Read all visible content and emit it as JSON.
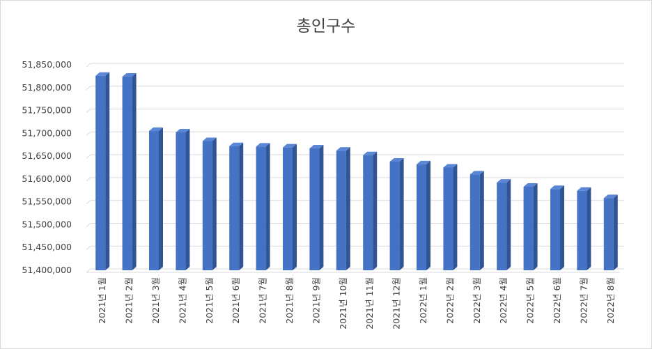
{
  "chart_data": {
    "type": "bar",
    "title": "총인구수",
    "xlabel": "",
    "ylabel": "",
    "ylim": [
      51400000,
      51850000
    ],
    "yticks": [
      51400000,
      51450000,
      51500000,
      51550000,
      51600000,
      51650000,
      51700000,
      51750000,
      51800000,
      51850000
    ],
    "ytick_labels": [
      "51,400,000",
      "51,450,000",
      "51,500,000",
      "51,550,000",
      "51,600,000",
      "51,650,000",
      "51,700,000",
      "51,750,000",
      "51,800,000",
      "51,850,000"
    ],
    "grid": true,
    "categories": [
      "2021년 1월",
      "2021년 2월",
      "2021년 3월",
      "2021년 4월",
      "2021년 5월",
      "2021년 6월",
      "2021년 7월",
      "2021년 8월",
      "2021년 9월",
      "2021년 10월",
      "2021년 11월",
      "2021년 12월",
      "2022년 1월",
      "2022년 2월",
      "2022년 3월",
      "2022년 4월",
      "2022년 5월",
      "2022년 6월",
      "2022년 7월",
      "2022년 8월"
    ],
    "values": [
      51826000,
      51824000,
      51705000,
      51702000,
      51683000,
      51672000,
      51671000,
      51669000,
      51667000,
      51662000,
      51652000,
      51638000,
      51632000,
      51625000,
      51610000,
      51592000,
      51583000,
      51578000,
      51574000,
      51558000
    ],
    "colors": {
      "bar_front": "#4472c4",
      "bar_side": "#2f5597",
      "bar_top": "#5b86d6",
      "grid": "#d9d9d9"
    }
  }
}
